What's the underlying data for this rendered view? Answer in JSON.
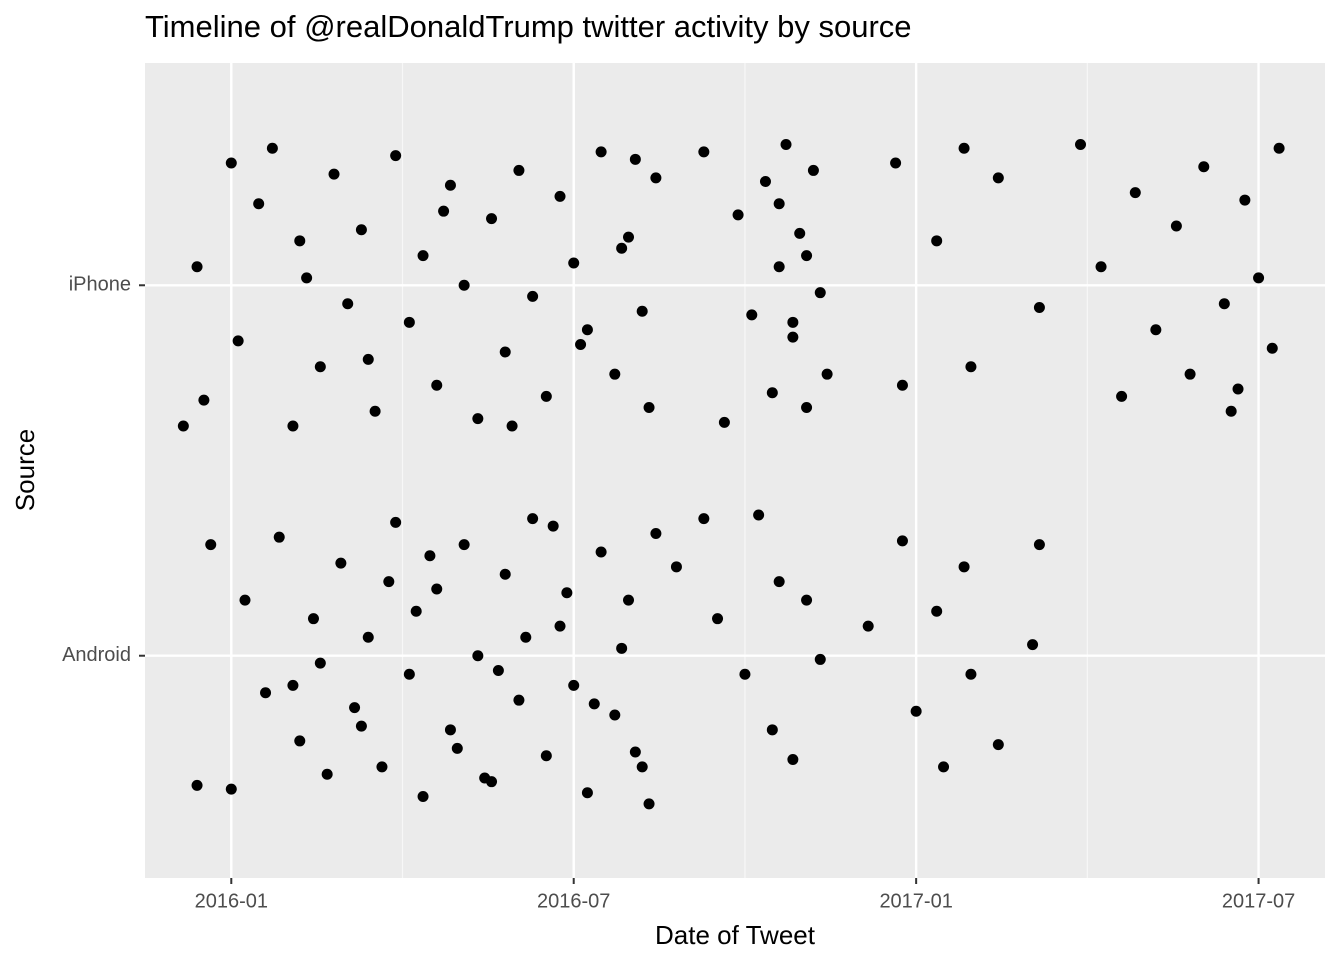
{
  "chart_data": {
    "type": "scatter",
    "title": "Timeline of @realDonaldTrump twitter activity by source",
    "x_label": "Date of Tweet",
    "y_label": "Source",
    "xlim": [
      2015.874,
      2017.597
    ],
    "ylim": [
      0.4,
      2.6
    ],
    "xticks": [
      {
        "value": 2016,
        "label": "2016-01"
      },
      {
        "value": 2016.5,
        "label": "2016-07"
      },
      {
        "value": 2017,
        "label": "2017-01"
      },
      {
        "value": 2017.5,
        "label": "2017-07"
      }
    ],
    "x_minor_ticks": [
      2016.25,
      2016.75,
      2017.25
    ],
    "yticks": [
      {
        "value": 1,
        "label": "Android"
      },
      {
        "value": 2,
        "label": "iPhone"
      }
    ],
    "grid": true,
    "series": [
      {
        "color": "#000000",
        "x": [
          2015.95,
          2015.96,
          2016.0,
          2016.01,
          2016.04,
          2016.06,
          2016.09,
          2016.1,
          2016.13,
          2016.15,
          2016.17,
          2016.19,
          2016.21,
          2016.24,
          2016.26,
          2016.28,
          2016.3,
          2016.32,
          2016.34,
          2016.36,
          2016.38,
          2016.4,
          2016.42,
          2016.44,
          2016.46,
          2016.48,
          2016.5,
          2016.52,
          2016.54,
          2016.56,
          2016.58,
          2016.6,
          2016.61,
          2016.62,
          2016.11,
          2016.2,
          2016.31,
          2016.41,
          2016.51,
          2016.57,
          2016.59,
          2016.69,
          2016.72,
          2016.74,
          2016.76,
          2016.78,
          2016.79,
          2016.8,
          2016.81,
          2016.82,
          2016.83,
          2016.84,
          2016.85,
          2016.86,
          2016.87,
          2016.8,
          2016.82,
          2016.84,
          2016.97,
          2016.98,
          2017.03,
          2017.07,
          2017.08,
          2017.12,
          2017.18,
          2017.24,
          2017.27,
          2017.3,
          2017.32,
          2017.35,
          2017.38,
          2017.4,
          2017.42,
          2017.45,
          2017.46,
          2017.48,
          2017.5,
          2017.52,
          2017.53,
          2017.47
        ],
        "y": [
          2.05,
          1.69,
          2.33,
          1.85,
          2.22,
          2.37,
          1.62,
          2.12,
          1.78,
          2.3,
          1.95,
          2.15,
          1.66,
          2.35,
          1.9,
          2.08,
          1.73,
          2.27,
          2.0,
          1.64,
          2.18,
          1.82,
          2.31,
          1.97,
          1.7,
          2.24,
          2.06,
          1.88,
          2.36,
          1.76,
          2.13,
          1.93,
          1.67,
          2.29,
          2.02,
          1.8,
          2.2,
          1.62,
          1.84,
          2.1,
          2.34,
          2.36,
          1.63,
          2.19,
          1.92,
          2.28,
          1.71,
          2.05,
          2.38,
          1.86,
          2.14,
          1.67,
          2.31,
          1.98,
          1.76,
          2.22,
          1.9,
          2.08,
          2.33,
          1.73,
          2.12,
          2.37,
          1.78,
          2.29,
          1.94,
          2.38,
          2.05,
          1.7,
          2.25,
          1.88,
          2.16,
          1.76,
          2.32,
          1.95,
          1.66,
          2.23,
          2.02,
          1.83,
          2.37,
          1.72
        ]
      },
      {
        "color": "#000000",
        "x": [
          2015.93,
          2015.95,
          2015.97,
          2016.0,
          2016.02,
          2016.05,
          2016.07,
          2016.1,
          2016.12,
          2016.14,
          2016.16,
          2016.18,
          2016.2,
          2016.22,
          2016.24,
          2016.26,
          2016.28,
          2016.3,
          2016.32,
          2016.34,
          2016.36,
          2016.38,
          2016.4,
          2016.42,
          2016.44,
          2016.46,
          2016.48,
          2016.5,
          2016.52,
          2016.54,
          2016.56,
          2016.58,
          2016.6,
          2016.62,
          2016.13,
          2016.23,
          2016.33,
          2016.43,
          2016.53,
          2016.61,
          2016.65,
          2016.69,
          2016.71,
          2016.75,
          2016.77,
          2016.79,
          2016.8,
          2016.82,
          2016.84,
          2016.86,
          2016.93,
          2016.98,
          2017.0,
          2017.03,
          2017.04,
          2017.07,
          2017.08,
          2017.12,
          2017.17,
          2017.18,
          2016.09,
          2016.27,
          2016.37,
          2016.47,
          2016.57,
          2016.19,
          2016.39,
          2016.49,
          2016.59,
          2016.29
        ],
        "y": [
          1.62,
          0.65,
          1.3,
          0.64,
          1.15,
          0.9,
          1.32,
          0.77,
          1.1,
          0.68,
          1.25,
          0.86,
          1.05,
          0.7,
          1.36,
          0.95,
          0.62,
          1.18,
          0.8,
          1.3,
          1.0,
          0.66,
          1.22,
          0.88,
          1.37,
          0.73,
          1.08,
          0.92,
          0.63,
          1.28,
          0.84,
          1.15,
          0.7,
          1.33,
          0.98,
          1.2,
          0.75,
          1.05,
          0.87,
          0.6,
          1.24,
          1.37,
          1.1,
          0.95,
          1.38,
          0.8,
          1.2,
          0.72,
          1.15,
          0.99,
          1.08,
          1.31,
          0.85,
          1.12,
          0.7,
          1.24,
          0.95,
          0.76,
          1.03,
          1.3,
          0.92,
          1.12,
          0.67,
          1.35,
          1.02,
          0.81,
          0.96,
          1.17,
          0.74,
          1.27
        ]
      }
    ]
  }
}
